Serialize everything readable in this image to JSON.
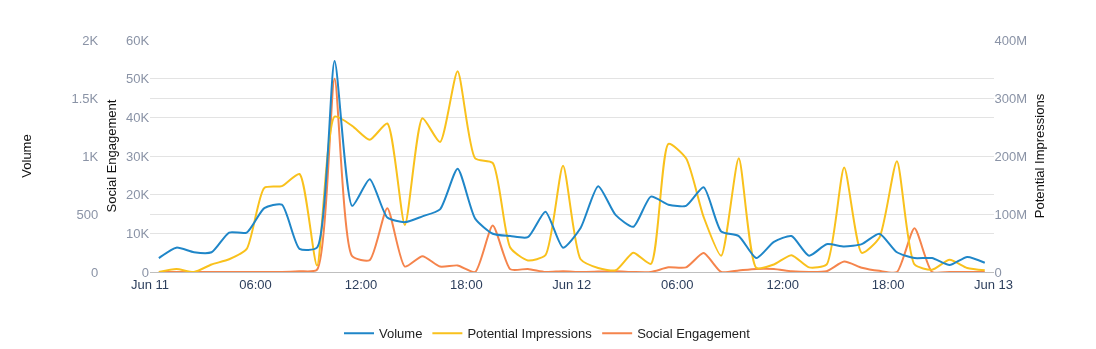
{
  "chart_data": {
    "type": "line",
    "ylabel": "Volume",
    "y2label": "Potential Impressions",
    "y3label": "Social Engagement",
    "x": [
      "--06-11T00:30",
      "--06-11T01:30",
      "--06-11T02:30",
      "--06-11T03:30",
      "--06-11T04:30",
      "--06-11T05:30",
      "--06-11T06:30",
      "--06-11T07:30",
      "--06-11T08:30",
      "--06-11T09:30",
      "--06-11T10:30",
      "--06-11T11:30",
      "--06-11T12:30",
      "--06-11T13:30",
      "--06-11T14:30",
      "--06-11T15:30",
      "--06-11T16:30",
      "--06-11T17:30",
      "--06-11T18:30",
      "--06-11T19:30",
      "--06-11T20:30",
      "--06-11T21:30",
      "--06-11T22:30",
      "--06-11T23:30",
      "--06-12T00:30",
      "--06-12T01:30",
      "--06-12T02:30",
      "--06-12T03:30",
      "--06-12T04:30",
      "--06-12T05:30",
      "--06-12T06:30",
      "--06-12T07:30",
      "--06-12T08:30",
      "--06-12T09:30",
      "--06-12T10:30",
      "--06-12T11:30",
      "--06-12T12:30",
      "--06-12T13:30",
      "--06-12T14:30",
      "--06-12T15:30",
      "--06-12T16:30",
      "--06-12T17:30",
      "--06-12T18:30",
      "--06-12T19:30",
      "--06-12T20:30",
      "--06-12T21:30",
      "--06-12T22:30",
      "--06-12T23:30"
    ],
    "xlim": [
      "--06-11T00:00",
      "--06-13T00:00"
    ],
    "xticks": [
      {
        "value": "--06-11T00:00",
        "label": "Jun 11"
      },
      {
        "value": "--06-11T06:00",
        "label": "06:00"
      },
      {
        "value": "--06-11T12:00",
        "label": "12:00"
      },
      {
        "value": "--06-11T18:00",
        "label": "18:00"
      },
      {
        "value": "--06-12T00:00",
        "label": "Jun 12"
      },
      {
        "value": "--06-12T06:00",
        "label": "06:00"
      },
      {
        "value": "--06-12T12:00",
        "label": "12:00"
      },
      {
        "value": "--06-12T18:00",
        "label": "18:00"
      },
      {
        "value": "--06-13T00:00",
        "label": "Jun 13"
      }
    ],
    "ylim": [
      0,
      2000
    ],
    "yticks": [
      0,
      500,
      {
        "value": 1000,
        "label": "1K"
      },
      {
        "value": 1500,
        "label": "1.5K"
      },
      {
        "value": 2000,
        "label": "2K"
      }
    ],
    "y2lim": [
      0,
      400000000
    ],
    "y2ticks": [
      0,
      {
        "value": 100000000,
        "label": "100M"
      },
      {
        "value": 200000000,
        "label": "200M"
      },
      {
        "value": 300000000,
        "label": "300M"
      },
      {
        "value": 400000000,
        "label": "400M"
      }
    ],
    "y3lim": [
      0,
      60000
    ],
    "y3ticks": [
      0,
      {
        "value": 10000,
        "label": "10K"
      },
      {
        "value": 20000,
        "label": "20K"
      },
      {
        "value": 30000,
        "label": "30K"
      },
      {
        "value": 40000,
        "label": "40K"
      },
      {
        "value": 50000,
        "label": "50K"
      },
      {
        "value": 60000,
        "label": "60K"
      }
    ],
    "grid": "y",
    "legend": "bottom",
    "marker": "none",
    "line_style": "solid",
    "series": [
      {
        "name": "Volume",
        "color": "#1f86c8",
        "axis": "y",
        "values": [
          120,
          210,
          170,
          170,
          340,
          340,
          550,
          580,
          200,
          210,
          1820,
          570,
          800,
          470,
          430,
          480,
          540,
          890,
          460,
          330,
          310,
          300,
          520,
          210,
          380,
          740,
          490,
          390,
          650,
          580,
          570,
          730,
          350,
          310,
          120,
          260,
          310,
          140,
          240,
          220,
          240,
          330,
          170,
          120,
          120,
          60,
          130,
          80
        ]
      },
      {
        "name": "Potential Impressions",
        "color": "#f9c11c",
        "axis": "y2",
        "values": [
          0,
          5000000,
          0,
          13000000,
          22000000,
          40000000,
          145000000,
          148000000,
          169000000,
          11000000,
          268000000,
          252000000,
          228000000,
          256000000,
          81000000,
          265000000,
          224000000,
          346000000,
          196000000,
          188000000,
          42000000,
          20000000,
          29000000,
          183000000,
          22000000,
          7000000,
          3000000,
          33000000,
          14000000,
          221000000,
          196000000,
          95000000,
          28000000,
          196000000,
          7000000,
          13000000,
          29000000,
          8000000,
          13000000,
          180000000,
          33000000,
          59000000,
          191000000,
          13000000,
          4000000,
          21000000,
          7000000,
          3000000
        ]
      },
      {
        "name": "Social Engagement",
        "color": "#f5844c",
        "axis": "y3",
        "values": [
          0,
          0,
          0,
          0,
          0,
          0,
          0,
          0,
          200,
          600,
          50000,
          4100,
          3100,
          16500,
          1400,
          4100,
          1400,
          1700,
          0,
          12000,
          700,
          800,
          0,
          200,
          0,
          100,
          200,
          0,
          0,
          1200,
          1200,
          4900,
          0,
          400,
          800,
          800,
          200,
          0,
          200,
          2700,
          1100,
          300,
          0,
          11300,
          0,
          0,
          0,
          0
        ]
      }
    ]
  }
}
